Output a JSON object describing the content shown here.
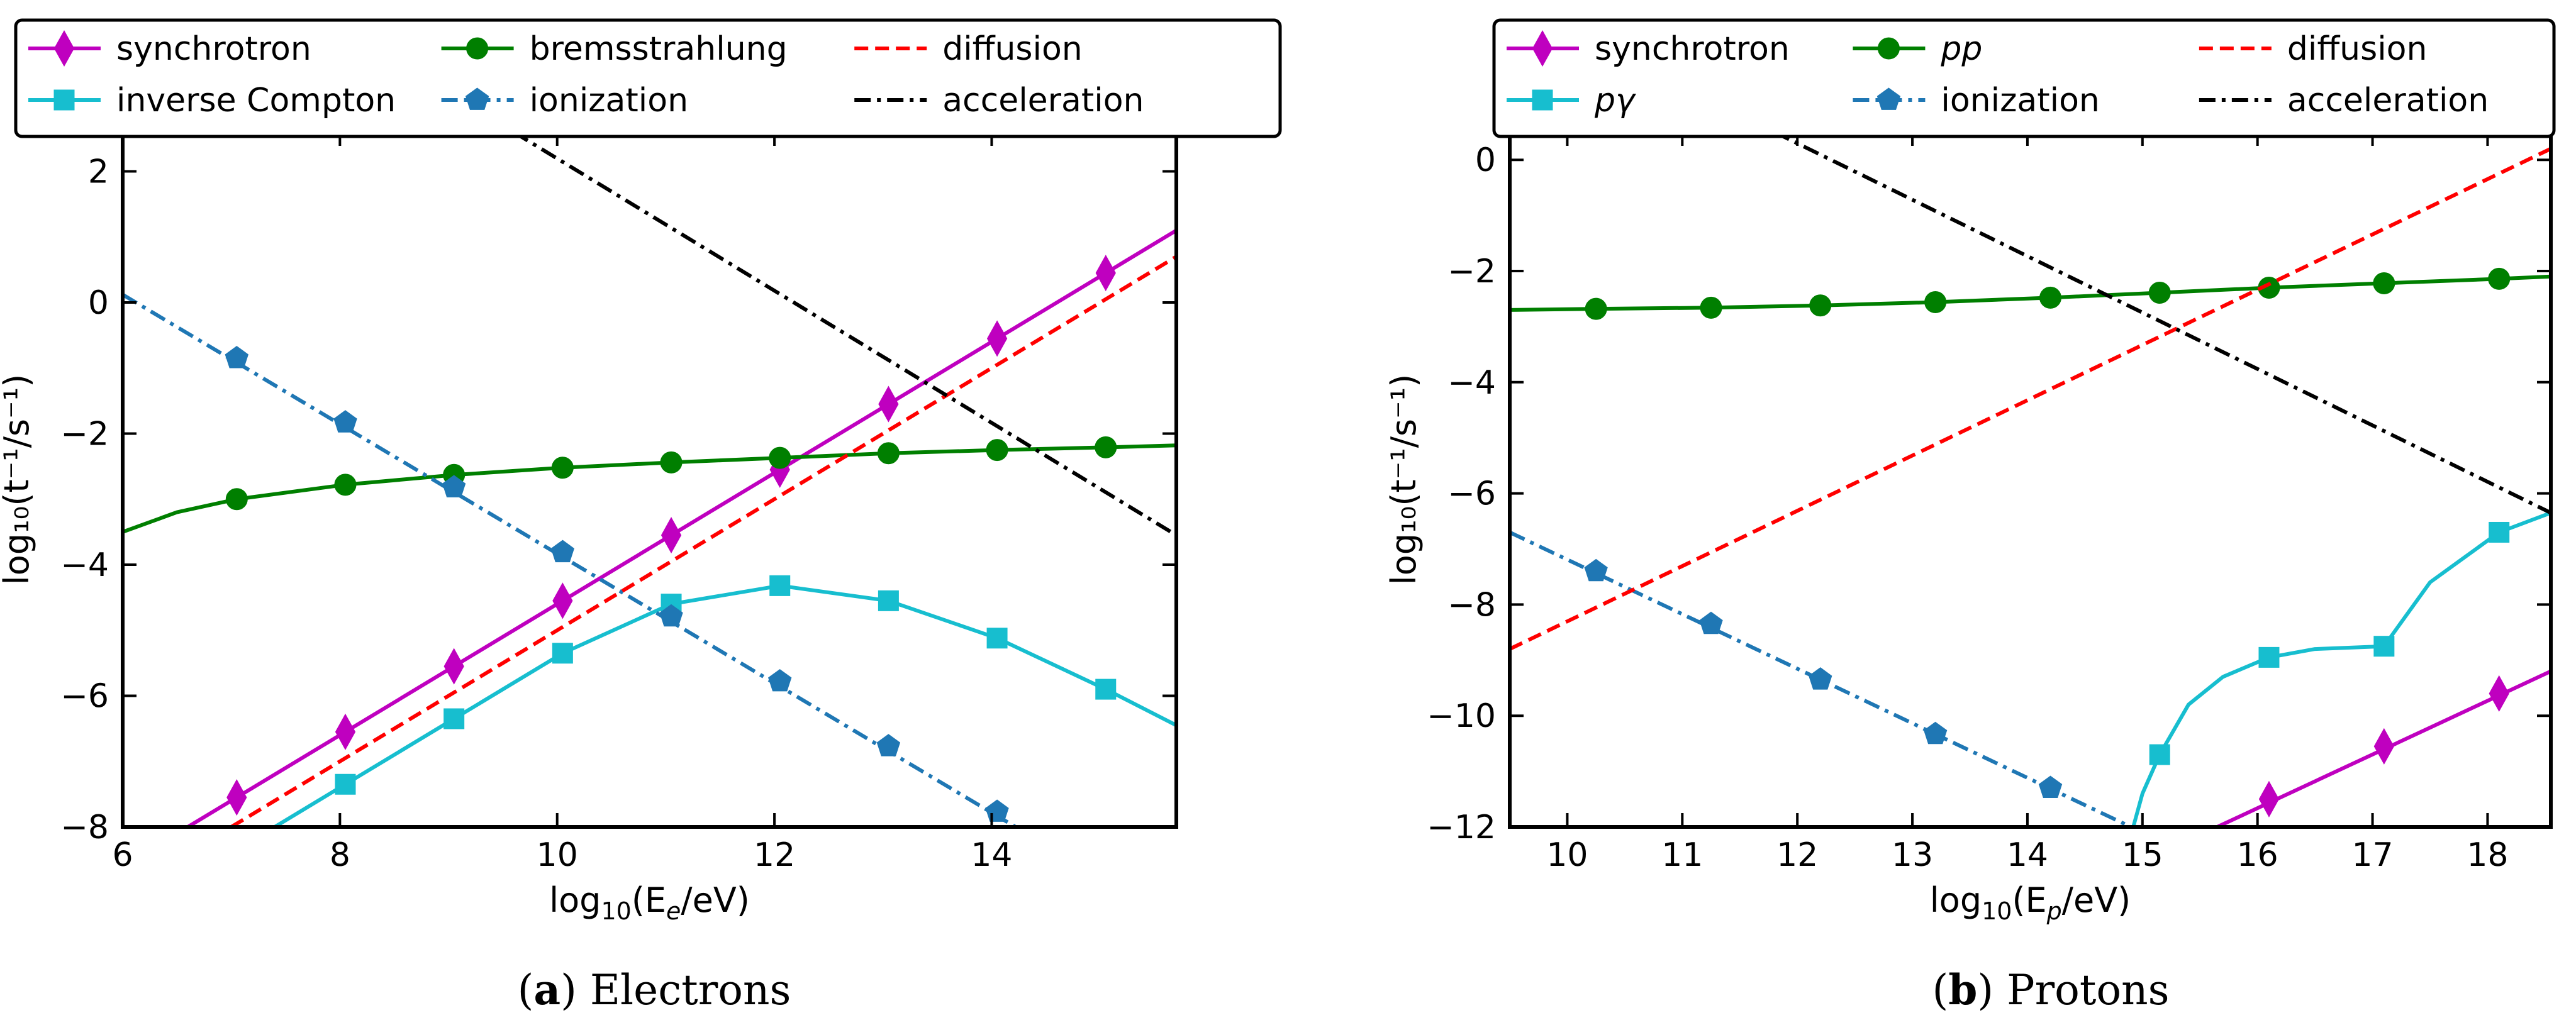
{
  "chart_data": [
    {
      "type": "line",
      "id": "a",
      "caption_tag": "a",
      "caption_text": "Electrons",
      "xlabel": "log₁₀(E_e/eV)",
      "ylabel": "log₁₀(t⁻¹/s⁻¹)",
      "xlim": [
        6,
        15.7
      ],
      "ylim": [
        -8,
        2.6
      ],
      "xticks": [
        6,
        8,
        10,
        12,
        14
      ],
      "yticks": [
        -8,
        -6,
        -4,
        -2,
        0,
        2
      ],
      "legend": [
        "synchrotron",
        "inverse Compton",
        "bremsstrahlung",
        "ionization",
        "diffusion",
        "acceleration"
      ],
      "series": [
        {
          "name": "synchrotron",
          "color": "#bf00bf",
          "dash": "solid",
          "marker": "diamond",
          "x": [
            6.6,
            15.7
          ],
          "y": [
            -8.0,
            1.1
          ],
          "markers_x": [
            7.05,
            8.05,
            9.05,
            10.05,
            11.05,
            12.05,
            13.05,
            14.05,
            15.05
          ],
          "markers_y": [
            -7.55,
            -6.55,
            -5.55,
            -4.55,
            -3.55,
            -2.55,
            -1.55,
            -0.55,
            0.45
          ]
        },
        {
          "name": "inverse Compton",
          "color": "#17becf",
          "dash": "solid",
          "marker": "square",
          "x": [
            7.4,
            8.05,
            9.05,
            10.05,
            11.05,
            12.05,
            13.05,
            14.05,
            15.05,
            15.7
          ],
          "y": [
            -8.0,
            -7.35,
            -6.35,
            -5.35,
            -4.6,
            -4.32,
            -4.55,
            -5.12,
            -5.9,
            -6.45
          ],
          "markers_x": [
            8.05,
            9.05,
            10.05,
            11.05,
            12.05,
            13.05,
            14.05,
            15.05
          ],
          "markers_y": [
            -7.35,
            -6.35,
            -5.35,
            -4.6,
            -4.32,
            -4.55,
            -5.12,
            -5.9
          ]
        },
        {
          "name": "bremsstrahlung",
          "color": "#007f00",
          "dash": "solid",
          "marker": "circle",
          "x": [
            6.0,
            6.5,
            7.05,
            8.05,
            9.05,
            10.05,
            11.05,
            12.05,
            13.05,
            14.05,
            15.05,
            15.7
          ],
          "y": [
            -3.5,
            -3.2,
            -3.0,
            -2.78,
            -2.63,
            -2.52,
            -2.44,
            -2.37,
            -2.3,
            -2.25,
            -2.21,
            -2.18
          ],
          "markers_x": [
            7.05,
            8.05,
            9.05,
            10.05,
            11.05,
            12.05,
            13.05,
            14.05,
            15.05
          ],
          "markers_y": [
            -3.0,
            -2.78,
            -2.63,
            -2.52,
            -2.44,
            -2.37,
            -2.3,
            -2.25,
            -2.21
          ]
        },
        {
          "name": "ionization",
          "color": "#1f77b4",
          "dash": "dashdot",
          "marker": "pentagon",
          "x": [
            6.0,
            14.22
          ],
          "y": [
            0.12,
            -8.0
          ],
          "markers_x": [
            7.05,
            8.05,
            9.05,
            10.05,
            11.05,
            12.05,
            13.05,
            14.05
          ],
          "markers_y": [
            -0.85,
            -1.83,
            -2.82,
            -3.81,
            -4.79,
            -5.78,
            -6.77,
            -7.77
          ]
        },
        {
          "name": "diffusion",
          "color": "#ff0000",
          "dash": "dashed",
          "marker": "none",
          "x": [
            7.0,
            15.7
          ],
          "y": [
            -8.0,
            0.7
          ]
        },
        {
          "name": "acceleration",
          "color": "#000000",
          "dash": "dashdot",
          "marker": "none",
          "x": [
            9.6,
            15.7
          ],
          "y": [
            2.6,
            -3.55
          ]
        }
      ]
    },
    {
      "type": "line",
      "id": "b",
      "caption_tag": "b",
      "caption_text": "Protons",
      "xlabel": "log₁₀(E_p/eV)",
      "ylabel": "log₁₀(t⁻¹/s⁻¹)",
      "xlim": [
        9.5,
        18.55
      ],
      "ylim": [
        -12,
        0.5
      ],
      "xticks": [
        10,
        11,
        12,
        13,
        14,
        15,
        16,
        17,
        18
      ],
      "yticks": [
        -12,
        -10,
        -8,
        -6,
        -4,
        -2,
        0
      ],
      "legend": [
        "synchrotron",
        "pγ",
        "pp",
        "ionization",
        "diffusion",
        "acceleration"
      ],
      "series": [
        {
          "name": "synchrotron",
          "color": "#bf00bf",
          "dash": "solid",
          "marker": "diamond",
          "x": [
            15.65,
            18.55
          ],
          "y": [
            -12.0,
            -9.2
          ],
          "markers_x": [
            16.1,
            17.1,
            18.1
          ],
          "markers_y": [
            -11.5,
            -10.55,
            -9.6
          ]
        },
        {
          "name": "pγ",
          "color": "#17becf",
          "dash": "solid",
          "marker": "square",
          "x": [
            14.92,
            15.0,
            15.15,
            15.4,
            15.7,
            16.1,
            16.5,
            17.1,
            17.5,
            18.1,
            18.55
          ],
          "y": [
            -12.0,
            -11.4,
            -10.7,
            -9.8,
            -9.3,
            -8.95,
            -8.8,
            -8.75,
            -7.6,
            -6.7,
            -6.35
          ],
          "markers_x": [
            15.15,
            16.1,
            17.1,
            18.1
          ],
          "markers_y": [
            -10.7,
            -8.95,
            -8.75,
            -6.7
          ]
        },
        {
          "name": "pp",
          "color": "#007f00",
          "dash": "solid",
          "marker": "circle",
          "x": [
            9.5,
            10.25,
            11.25,
            12.2,
            13.2,
            14.2,
            15.15,
            16.1,
            17.1,
            18.1,
            18.55
          ],
          "y": [
            -2.7,
            -2.68,
            -2.66,
            -2.62,
            -2.56,
            -2.48,
            -2.39,
            -2.3,
            -2.22,
            -2.14,
            -2.1
          ],
          "markers_x": [
            10.25,
            11.25,
            12.2,
            13.2,
            14.2,
            15.15,
            16.1,
            17.1,
            18.1
          ],
          "markers_y": [
            -2.68,
            -2.66,
            -2.62,
            -2.56,
            -2.48,
            -2.39,
            -2.3,
            -2.22,
            -2.14
          ]
        },
        {
          "name": "ionization",
          "color": "#1f77b4",
          "dash": "dashdot",
          "marker": "pentagon",
          "x": [
            9.5,
            14.9
          ],
          "y": [
            -6.7,
            -12.0
          ],
          "markers_x": [
            10.25,
            11.25,
            12.2,
            13.2,
            14.2
          ],
          "markers_y": [
            -7.4,
            -8.35,
            -9.35,
            -10.33,
            -11.3
          ]
        },
        {
          "name": "diffusion",
          "color": "#ff0000",
          "dash": "dashed",
          "marker": "none",
          "x": [
            9.5,
            18.55
          ],
          "y": [
            -8.8,
            0.2
          ]
        },
        {
          "name": "acceleration",
          "color": "#000000",
          "dash": "dashdot",
          "marker": "none",
          "x": [
            11.8,
            18.55
          ],
          "y": [
            0.5,
            -6.35
          ]
        }
      ]
    }
  ]
}
